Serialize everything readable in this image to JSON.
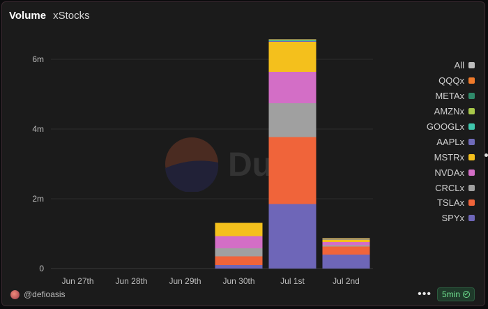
{
  "header": {
    "title": "Volume",
    "subtitle": "xStocks"
  },
  "watermark": {
    "text": "Dune"
  },
  "footer": {
    "handle": "@defioasis",
    "refresh": "5min"
  },
  "colors": {
    "SPYx": "#6e66b8",
    "TSLAx": "#f0643a",
    "CRCLx": "#a0a0a0",
    "NVDAx": "#d36ec6",
    "MSTRx": "#f4c01c",
    "AAPLx": "#6f6ab8",
    "GOOGLx": "#3fc7ad",
    "AMZNx": "#a8c84a",
    "METAx": "#2f8a6a",
    "QQQx": "#f07a2a",
    "All": "#bdbdbd"
  },
  "chart_data": {
    "type": "bar",
    "stacked": true,
    "categories": [
      "Jun 27th",
      "Jun 28th",
      "Jun 29th",
      "Jun 30th",
      "Jul 1st",
      "Jul 2nd"
    ],
    "ylim": [
      0,
      6600000
    ],
    "yticks": [
      {
        "value": 0,
        "label": "0"
      },
      {
        "value": 2000000,
        "label": "2m"
      },
      {
        "value": 4000000,
        "label": "4m"
      },
      {
        "value": 6000000,
        "label": "6m"
      }
    ],
    "legend": [
      "All",
      "QQQx",
      "METAx",
      "AMZNx",
      "GOOGLx",
      "AAPLx",
      "MSTRx",
      "NVDAx",
      "CRCLx",
      "TSLAx",
      "SPYx"
    ],
    "series": [
      {
        "name": "SPYx",
        "values": [
          0,
          0,
          0,
          100000,
          1850000,
          400000
        ]
      },
      {
        "name": "TSLAx",
        "values": [
          0,
          0,
          0,
          250000,
          1920000,
          230000
        ]
      },
      {
        "name": "CRCLx",
        "values": [
          0,
          0,
          0,
          230000,
          970000,
          40000
        ]
      },
      {
        "name": "NVDAx",
        "values": [
          0,
          0,
          0,
          350000,
          900000,
          90000
        ]
      },
      {
        "name": "MSTRx",
        "values": [
          0,
          0,
          0,
          380000,
          860000,
          70000
        ]
      },
      {
        "name": "AAPLx",
        "values": [
          0,
          0,
          0,
          0,
          20000,
          10000
        ]
      },
      {
        "name": "GOOGLx",
        "values": [
          0,
          0,
          0,
          0,
          20000,
          10000
        ]
      },
      {
        "name": "AMZNx",
        "values": [
          0,
          0,
          0,
          0,
          10000,
          0
        ]
      },
      {
        "name": "METAx",
        "values": [
          0,
          0,
          0,
          0,
          20000,
          10000
        ]
      },
      {
        "name": "QQQx",
        "values": [
          0,
          0,
          0,
          0,
          10000,
          20000
        ]
      },
      {
        "name": "All",
        "values": [
          0,
          0,
          0,
          0,
          0,
          0
        ]
      }
    ],
    "grid": true,
    "legend_position": "right"
  }
}
